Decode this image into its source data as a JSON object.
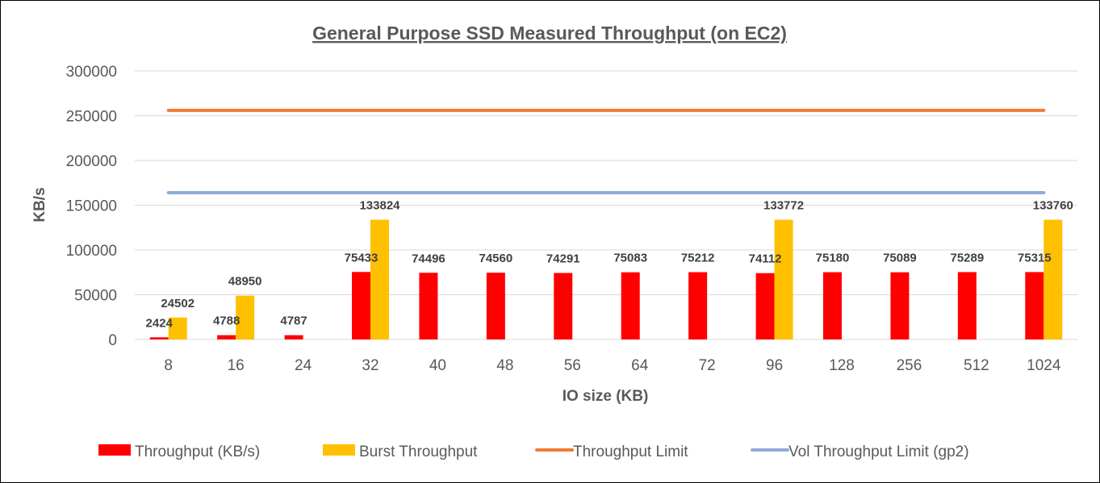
{
  "chart_data": {
    "type": "bar",
    "title": "General Purpose SSD Measured Throughput (on EC2)",
    "xlabel": "IO size (KB)",
    "ylabel": "KB/s",
    "ylim": [
      0,
      300000
    ],
    "yticks": [
      0,
      50000,
      100000,
      150000,
      200000,
      250000,
      300000
    ],
    "categories": [
      "8",
      "16",
      "24",
      "32",
      "40",
      "48",
      "56",
      "64",
      "72",
      "96",
      "128",
      "256",
      "512",
      "1024"
    ],
    "grid": "horizontal",
    "legend_position": "bottom",
    "series": [
      {
        "name": "Throughput (KB/s)",
        "kind": "bar",
        "color": "#ff0000",
        "values": [
          2424,
          4788,
          4787,
          75433,
          74496,
          74560,
          74291,
          75083,
          75212,
          74112,
          75180,
          75089,
          75289,
          75315
        ]
      },
      {
        "name": "Burst Throughput",
        "kind": "bar",
        "color": "#ffc000",
        "values": [
          24502,
          48950,
          null,
          133824,
          null,
          null,
          null,
          null,
          null,
          133772,
          null,
          null,
          null,
          133760
        ]
      },
      {
        "name": "Throughput Limit",
        "kind": "line",
        "color": "#ed7d31",
        "values": [
          256000,
          256000,
          256000,
          256000,
          256000,
          256000,
          256000,
          256000,
          256000,
          256000,
          256000,
          256000,
          256000,
          256000
        ]
      },
      {
        "name": "Vol Throughput Limit (gp2)",
        "kind": "line",
        "color": "#8faadc",
        "values": [
          164000,
          164000,
          164000,
          164000,
          164000,
          164000,
          164000,
          164000,
          164000,
          164000,
          164000,
          164000,
          164000,
          164000
        ]
      }
    ]
  }
}
